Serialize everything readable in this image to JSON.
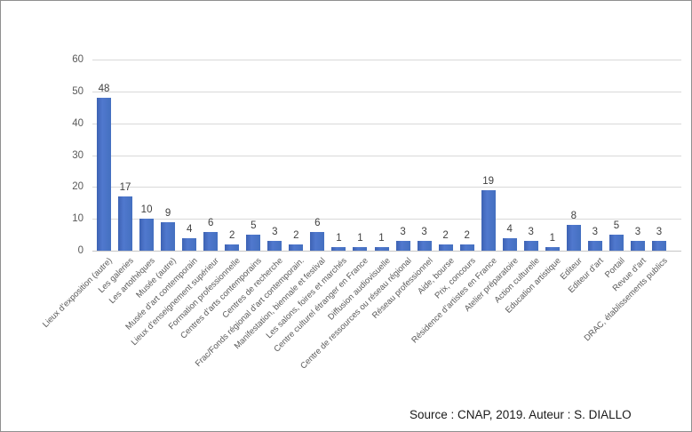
{
  "chart_data": {
    "type": "bar",
    "title": "",
    "xlabel": "",
    "ylabel": "",
    "categories": [
      "Lieux d’exposition (autre)",
      "Les galeries",
      "Les artothèques",
      "Musée (autre)",
      "Musée d’art contemporain",
      "Lieux d’enseignement supérieur",
      "Formation professionnelle",
      "Centres d’arts contemporains",
      "Centres de recherche",
      "Frac/Fonds régional d’art contemporain.",
      "Manifestation, biennale et festival",
      "Les salons, foires et marchés",
      "Centre culturel étranger en France",
      "Diffusion audiovisuelle",
      "Centre de ressources ou réseau régional",
      "Réseau professionnel",
      "Aide, bourse",
      "Prix, concours",
      "Résidence d’artistes en France",
      "Atelier préparatoire",
      "Action culturelle",
      "Education artistique",
      "Editeur",
      "Editeur d’art",
      "Portail",
      "Revue d’art",
      "DRAC, établissements publics"
    ],
    "values": [
      48,
      17,
      10,
      9,
      4,
      6,
      2,
      5,
      3,
      2,
      6,
      1,
      1,
      1,
      3,
      3,
      2,
      2,
      19,
      4,
      3,
      1,
      8,
      3,
      5,
      3,
      3
    ],
    "ylim": [
      0,
      60
    ],
    "yticks": [
      0,
      10,
      20,
      30,
      40,
      50,
      60
    ],
    "grid": true,
    "legend_position": "none",
    "data_labels": true,
    "bar_color": "#4472C4",
    "gridline_color": "#D9D9D9",
    "tick_label_color": "#595959",
    "source_caption": "Source : CNAP, 2019.  Auteur : S. DIALLO"
  }
}
